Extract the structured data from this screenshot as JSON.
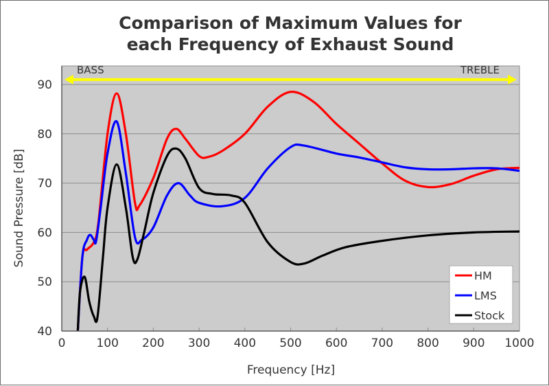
{
  "chart_data": {
    "type": "line",
    "title_lines": [
      "Comparison of Maximum Values for",
      "each Frequency of Exhaust Sound"
    ],
    "xlabel": "Frequency [Hz]",
    "ylabel": "Sound Pressure [dB]",
    "xlim": [
      0,
      1000
    ],
    "ylim": [
      40,
      90
    ],
    "x_ticks": [
      0,
      100,
      200,
      300,
      400,
      500,
      600,
      700,
      800,
      900,
      1000
    ],
    "y_ticks": [
      40,
      50,
      60,
      70,
      80,
      90
    ],
    "grid": "horizontal",
    "plot_background": "#cccccc",
    "legend_position": "bottom-right",
    "annotations": {
      "left_label": "BASS",
      "right_label": "TREBLE",
      "arrow_color": "#ffff00",
      "arrow_y": 91
    },
    "series": [
      {
        "name": "HM",
        "color": "#ff0000",
        "points": [
          [
            35,
            40
          ],
          [
            45,
            55
          ],
          [
            55,
            56.5
          ],
          [
            70,
            58
          ],
          [
            80,
            62
          ],
          [
            100,
            80
          ],
          [
            120,
            88.2
          ],
          [
            140,
            80
          ],
          [
            160,
            66
          ],
          [
            170,
            65.5
          ],
          [
            200,
            71
          ],
          [
            230,
            79
          ],
          [
            250,
            81
          ],
          [
            270,
            79
          ],
          [
            300,
            75.5
          ],
          [
            320,
            75.3
          ],
          [
            350,
            76.5
          ],
          [
            400,
            80
          ],
          [
            450,
            85.5
          ],
          [
            500,
            88.5
          ],
          [
            550,
            86.5
          ],
          [
            600,
            82
          ],
          [
            650,
            78
          ],
          [
            700,
            74
          ],
          [
            750,
            70.5
          ],
          [
            800,
            69.2
          ],
          [
            850,
            69.8
          ],
          [
            900,
            71.5
          ],
          [
            950,
            72.8
          ],
          [
            1000,
            73.1
          ]
        ]
      },
      {
        "name": "LMS",
        "color": "#0000ff",
        "points": [
          [
            35,
            40
          ],
          [
            45,
            55
          ],
          [
            55,
            58.5
          ],
          [
            62,
            59.5
          ],
          [
            70,
            58.5
          ],
          [
            75,
            58.2
          ],
          [
            85,
            65
          ],
          [
            100,
            76
          ],
          [
            120,
            82.5
          ],
          [
            140,
            72
          ],
          [
            160,
            59
          ],
          [
            175,
            58.5
          ],
          [
            200,
            61
          ],
          [
            230,
            67.5
          ],
          [
            255,
            70
          ],
          [
            280,
            67.5
          ],
          [
            300,
            66
          ],
          [
            350,
            65.3
          ],
          [
            400,
            67
          ],
          [
            450,
            73
          ],
          [
            500,
            77.3
          ],
          [
            530,
            77.6
          ],
          [
            600,
            76
          ],
          [
            650,
            75.2
          ],
          [
            700,
            74.2
          ],
          [
            750,
            73.2
          ],
          [
            800,
            72.8
          ],
          [
            850,
            72.8
          ],
          [
            900,
            73
          ],
          [
            950,
            73
          ],
          [
            1000,
            72.5
          ]
        ]
      },
      {
        "name": "Stock",
        "color": "#000000",
        "points": [
          [
            35,
            40
          ],
          [
            40,
            48
          ],
          [
            50,
            51
          ],
          [
            60,
            46
          ],
          [
            70,
            43
          ],
          [
            78,
            42.8
          ],
          [
            90,
            55
          ],
          [
            100,
            65
          ],
          [
            120,
            73.8
          ],
          [
            140,
            65
          ],
          [
            155,
            55
          ],
          [
            165,
            54.5
          ],
          [
            180,
            60
          ],
          [
            200,
            68
          ],
          [
            230,
            75.5
          ],
          [
            250,
            77
          ],
          [
            270,
            75
          ],
          [
            300,
            69
          ],
          [
            330,
            67.8
          ],
          [
            370,
            67.5
          ],
          [
            400,
            66
          ],
          [
            450,
            58
          ],
          [
            500,
            54
          ],
          [
            530,
            53.7
          ],
          [
            570,
            55.3
          ],
          [
            620,
            57
          ],
          [
            700,
            58.3
          ],
          [
            800,
            59.4
          ],
          [
            900,
            60
          ],
          [
            1000,
            60.2
          ]
        ]
      }
    ]
  }
}
